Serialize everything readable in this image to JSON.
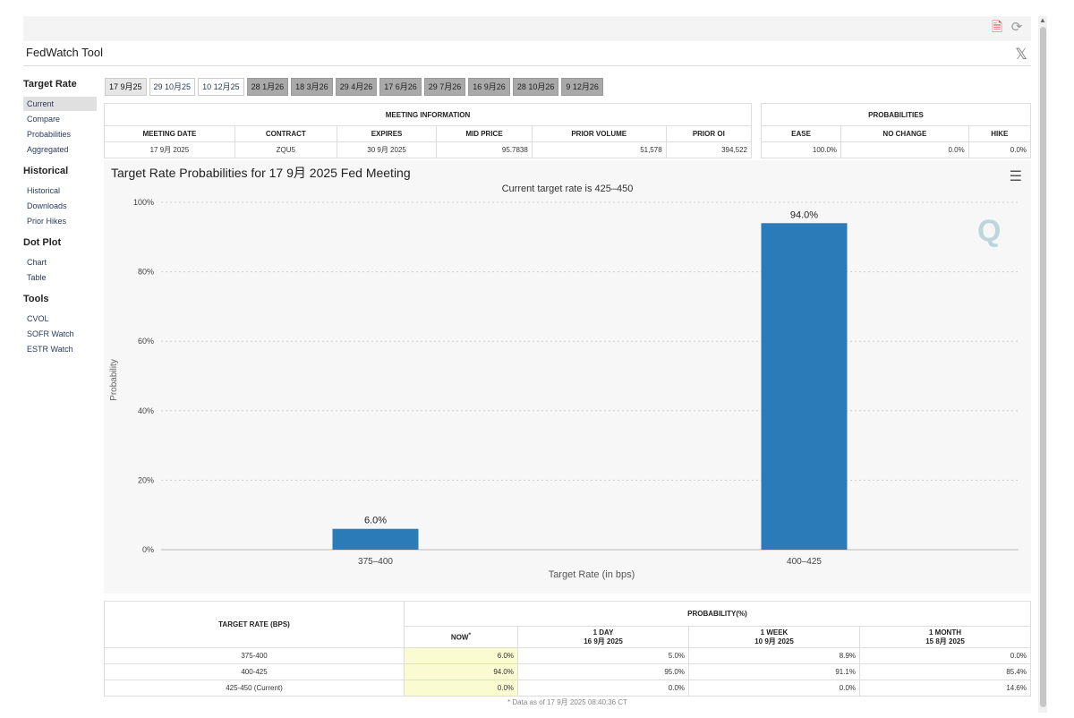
{
  "app": {
    "title": "FedWatch Tool"
  },
  "sidebar": {
    "groups": [
      {
        "title": "Target Rate",
        "items": [
          "Current",
          "Compare",
          "Probabilities",
          "Aggregated"
        ]
      },
      {
        "title": "Historical",
        "items": [
          "Historical",
          "Downloads",
          "Prior Hikes"
        ]
      },
      {
        "title": "Dot Plot",
        "items": [
          "Chart",
          "Table"
        ]
      },
      {
        "title": "Tools",
        "items": [
          "CVOL",
          "SOFR Watch",
          "ESTR Watch"
        ]
      }
    ]
  },
  "tabs": [
    {
      "label": "17 9月25",
      "style": "selected"
    },
    {
      "label": "29 10月25",
      "style": "white"
    },
    {
      "label": "10 12月25",
      "style": "white"
    },
    {
      "label": "28 1月26",
      "style": "grey"
    },
    {
      "label": "18 3月26",
      "style": "grey"
    },
    {
      "label": "29 4月26",
      "style": "grey"
    },
    {
      "label": "17 6月26",
      "style": "grey"
    },
    {
      "label": "29 7月26",
      "style": "grey"
    },
    {
      "label": "16 9月26",
      "style": "grey"
    },
    {
      "label": "28 10月26",
      "style": "grey"
    },
    {
      "label": "9 12月26",
      "style": "grey"
    }
  ],
  "meeting_info": {
    "heading": "MEETING INFORMATION",
    "columns": [
      "MEETING DATE",
      "CONTRACT",
      "EXPIRES",
      "MID PRICE",
      "PRIOR VOLUME",
      "PRIOR OI"
    ],
    "row": [
      "17 9月 2025",
      "ZQU5",
      "30 9月 2025",
      "95.7838",
      "51,578",
      "394,522"
    ]
  },
  "probabilities": {
    "heading": "PROBABILITIES",
    "columns": [
      "EASE",
      "NO CHANGE",
      "HIKE"
    ],
    "row": [
      "100.0%",
      "0.0%",
      "0.0%"
    ]
  },
  "chart": {
    "title": "Target Rate Probabilities for 17 9月 2025 Fed Meeting",
    "subtitle": "Current target rate is 425–450",
    "logo_text": "Q"
  },
  "chart_data": {
    "type": "bar",
    "categories": [
      "375–400",
      "400–425"
    ],
    "values": [
      6.0,
      94.0
    ],
    "data_labels": [
      "6.0%",
      "94.0%"
    ],
    "title": "Target Rate Probabilities for 17 9月 2025 Fed Meeting",
    "subtitle": "Current target rate is 425–450",
    "xlabel": "Target Rate (in bps)",
    "ylabel": "Probability",
    "ylim": [
      0,
      100
    ],
    "yticks": [
      "0%",
      "20%",
      "40%",
      "60%",
      "80%",
      "100%"
    ],
    "grid": true,
    "bar_color": "#2b7bb9"
  },
  "bottom_table": {
    "target_header": "TARGET RATE (BPS)",
    "prob_header": "PROBABILITY(%)",
    "col_now": "NOW",
    "col_now_mark": "*",
    "col_day": "1 DAY",
    "col_day_date": "16 9月 2025",
    "col_week": "1 WEEK",
    "col_week_date": "10 9月 2025",
    "col_month": "1 MONTH",
    "col_month_date": "15 8月 2025",
    "rows": [
      [
        "375-400",
        "6.0%",
        "5.0%",
        "8.9%",
        "0.0%"
      ],
      [
        "400-425",
        "94.0%",
        "95.0%",
        "91.1%",
        "85.4%"
      ],
      [
        "425-450 (Current)",
        "0.0%",
        "0.0%",
        "0.0%",
        "14.6%"
      ]
    ],
    "footnote": "* Data as of 17 9月 2025 08:40:36 CT"
  }
}
